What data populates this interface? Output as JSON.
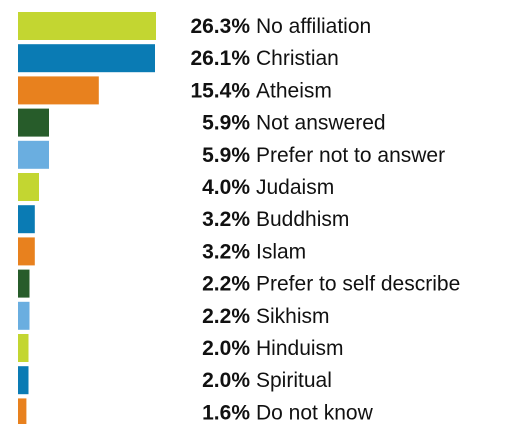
{
  "chart_data": {
    "type": "bar",
    "orientation": "horizontal",
    "categories": [
      "No affiliation",
      "Christian",
      "Atheism",
      "Not answered",
      "Prefer not to answer",
      "Judaism",
      "Buddhism",
      "Islam",
      "Prefer to self describe",
      "Sikhism",
      "Hinduism",
      "Spiritual",
      "Do not know"
    ],
    "values": [
      26.3,
      26.1,
      15.4,
      5.9,
      5.9,
      4.0,
      3.2,
      3.2,
      2.2,
      2.2,
      2.0,
      2.0,
      1.6
    ],
    "value_labels": [
      "26.3%",
      "26.1%",
      "15.4%",
      "5.9%",
      "5.9%",
      "4.0%",
      "3.2%",
      "3.2%",
      "2.2%",
      "2.2%",
      "2.0%",
      "2.0%",
      "1.6%"
    ],
    "bar_colors": [
      "#c3d631",
      "#0a7bb4",
      "#e8811e",
      "#275c2a",
      "#6aaee0",
      "#c3d631",
      "#0a7bb4",
      "#e8811e",
      "#275c2a",
      "#6aaee0",
      "#c3d631",
      "#0a7bb4",
      "#e8811e"
    ],
    "xlim": [
      0,
      26.3
    ],
    "grid": false,
    "legend": "none",
    "title": "",
    "xlabel": "",
    "ylabel": ""
  }
}
